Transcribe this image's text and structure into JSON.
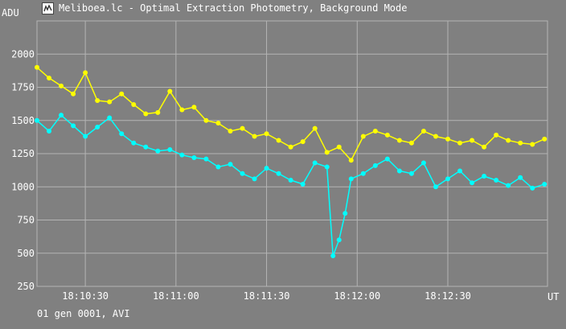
{
  "window": {
    "title": "Meliboea.lc - Optimal Extraction Photometry, Background Mode",
    "icon": "photometry-app-icon"
  },
  "footer": {
    "status": "01 gen 0001, AVI"
  },
  "colors": {
    "background": "#808080",
    "grid": "#b4b4b4",
    "text": "#ffffff",
    "series_upper": "#ffff00",
    "series_lower": "#00ffff"
  },
  "chart_data": {
    "type": "line",
    "title": "Meliboea.lc - Optimal Extraction Photometry, Background Mode",
    "xlabel": "UT",
    "ylabel": "ADU",
    "ylim": [
      250,
      2250
    ],
    "xlim": [
      "18:10:14",
      "18:13:03"
    ],
    "yticks": [
      250,
      500,
      750,
      1000,
      1250,
      1500,
      1750,
      2000
    ],
    "xticks": [
      "18:10:30",
      "18:11:00",
      "18:11:30",
      "18:12:00",
      "18:12:30"
    ],
    "grid": true,
    "x_units": "UT time (hh:mm:ss)",
    "series": [
      {
        "color": "#ffff00",
        "x": [
          "18:10:14",
          "18:10:18",
          "18:10:22",
          "18:10:26",
          "18:10:30",
          "18:10:34",
          "18:10:38",
          "18:10:42",
          "18:10:46",
          "18:10:50",
          "18:10:54",
          "18:10:58",
          "18:11:02",
          "18:11:06",
          "18:11:10",
          "18:11:14",
          "18:11:18",
          "18:11:22",
          "18:11:26",
          "18:11:30",
          "18:11:34",
          "18:11:38",
          "18:11:42",
          "18:11:46",
          "18:11:50",
          "18:11:54",
          "18:11:58",
          "18:12:02",
          "18:12:06",
          "18:12:10",
          "18:12:14",
          "18:12:18",
          "18:12:22",
          "18:12:26",
          "18:12:30",
          "18:12:34",
          "18:12:38",
          "18:12:42",
          "18:12:46",
          "18:12:50",
          "18:12:54",
          "18:12:58",
          "18:13:02"
        ],
        "values": [
          1900,
          1820,
          1760,
          1700,
          1860,
          1650,
          1640,
          1700,
          1620,
          1550,
          1560,
          1720,
          1580,
          1600,
          1500,
          1480,
          1420,
          1440,
          1380,
          1400,
          1350,
          1300,
          1340,
          1440,
          1260,
          1300,
          1200,
          1380,
          1420,
          1390,
          1350,
          1330,
          1420,
          1380,
          1360,
          1330,
          1350,
          1300,
          1390,
          1350,
          1330,
          1320,
          1360
        ]
      },
      {
        "color": "#00ffff",
        "x": [
          "18:10:14",
          "18:10:18",
          "18:10:22",
          "18:10:26",
          "18:10:30",
          "18:10:34",
          "18:10:38",
          "18:10:42",
          "18:10:46",
          "18:10:50",
          "18:10:54",
          "18:10:58",
          "18:11:02",
          "18:11:06",
          "18:11:10",
          "18:11:14",
          "18:11:18",
          "18:11:22",
          "18:11:26",
          "18:11:30",
          "18:11:34",
          "18:11:38",
          "18:11:42",
          "18:11:46",
          "18:11:50",
          "18:11:52",
          "18:11:54",
          "18:11:56",
          "18:11:58",
          "18:12:02",
          "18:12:06",
          "18:12:10",
          "18:12:14",
          "18:12:18",
          "18:12:22",
          "18:12:26",
          "18:12:30",
          "18:12:34",
          "18:12:38",
          "18:12:42",
          "18:12:46",
          "18:12:50",
          "18:12:54",
          "18:12:58",
          "18:13:02"
        ],
        "values": [
          1500,
          1420,
          1540,
          1460,
          1380,
          1450,
          1520,
          1400,
          1330,
          1300,
          1270,
          1280,
          1240,
          1220,
          1210,
          1150,
          1170,
          1100,
          1060,
          1140,
          1100,
          1050,
          1020,
          1180,
          1150,
          480,
          600,
          800,
          1060,
          1100,
          1160,
          1210,
          1120,
          1100,
          1180,
          1000,
          1060,
          1120,
          1030,
          1080,
          1050,
          1010,
          1070,
          990,
          1020
        ]
      }
    ]
  }
}
